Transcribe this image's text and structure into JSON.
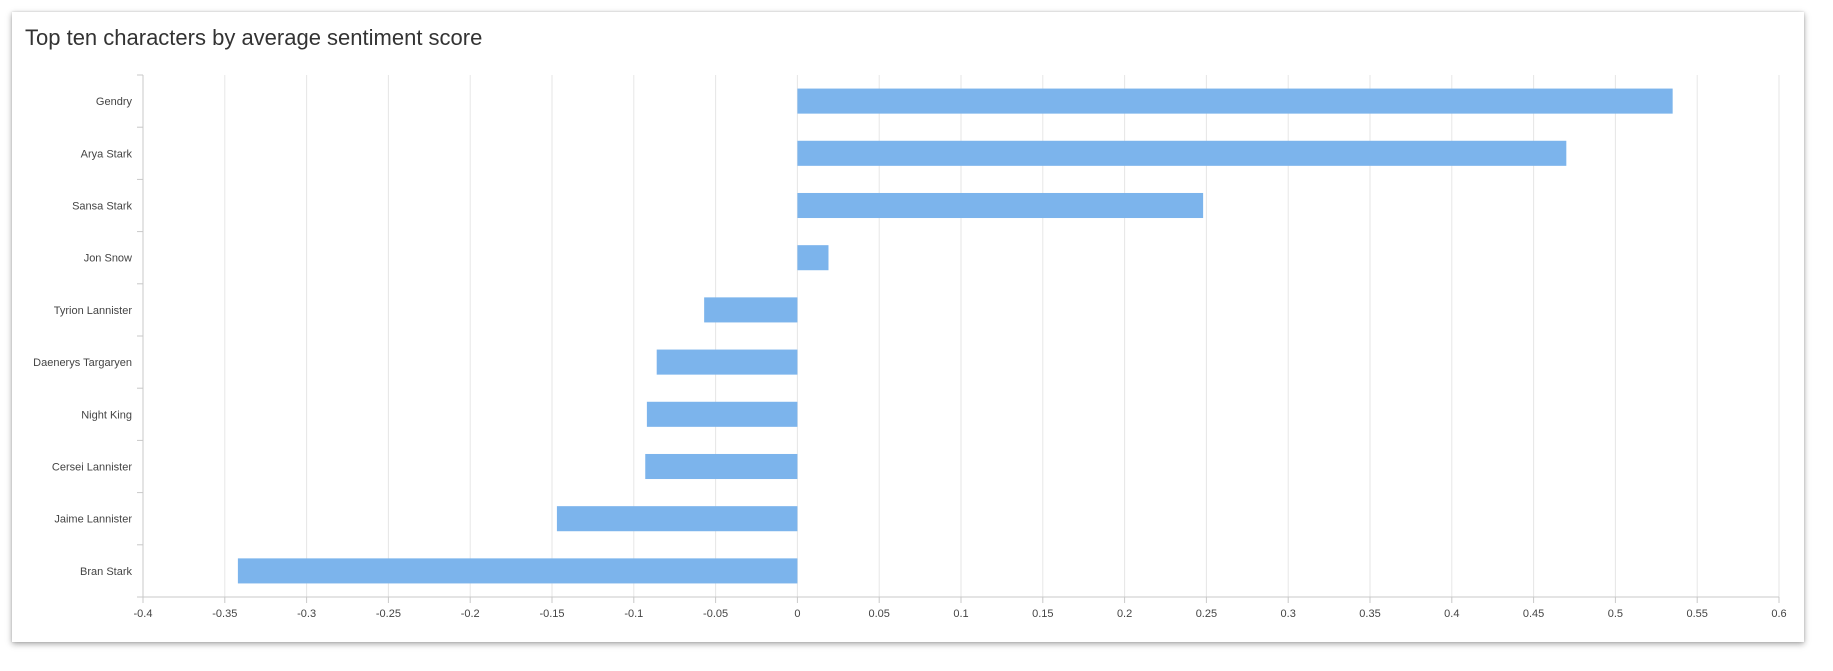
{
  "colors": {
    "bar": "#7cb4ec",
    "grid": "#e6e6e6",
    "axis": "#c8c8c8"
  },
  "chart_data": {
    "type": "bar",
    "orientation": "horizontal",
    "title": "Top ten characters by average sentiment score",
    "xlabel": "",
    "ylabel": "",
    "xlim": [
      -0.4,
      0.6
    ],
    "x_ticks": [
      -0.4,
      -0.35,
      -0.3,
      -0.25,
      -0.2,
      -0.15,
      -0.1,
      -0.05,
      0,
      0.05,
      0.1,
      0.15,
      0.2,
      0.25,
      0.3,
      0.35,
      0.4,
      0.45,
      0.5,
      0.55,
      0.6
    ],
    "grid": true,
    "legend": "none",
    "categories": [
      "Gendry",
      "Arya Stark",
      "Sansa Stark",
      "Jon Snow",
      "Tyrion Lannister",
      "Daenerys Targaryen",
      "Night King",
      "Cersei Lannister",
      "Jaime Lannister",
      "Bran Stark"
    ],
    "values": [
      0.535,
      0.47,
      0.248,
      0.019,
      -0.057,
      -0.086,
      -0.092,
      -0.093,
      -0.147,
      -0.342
    ]
  }
}
